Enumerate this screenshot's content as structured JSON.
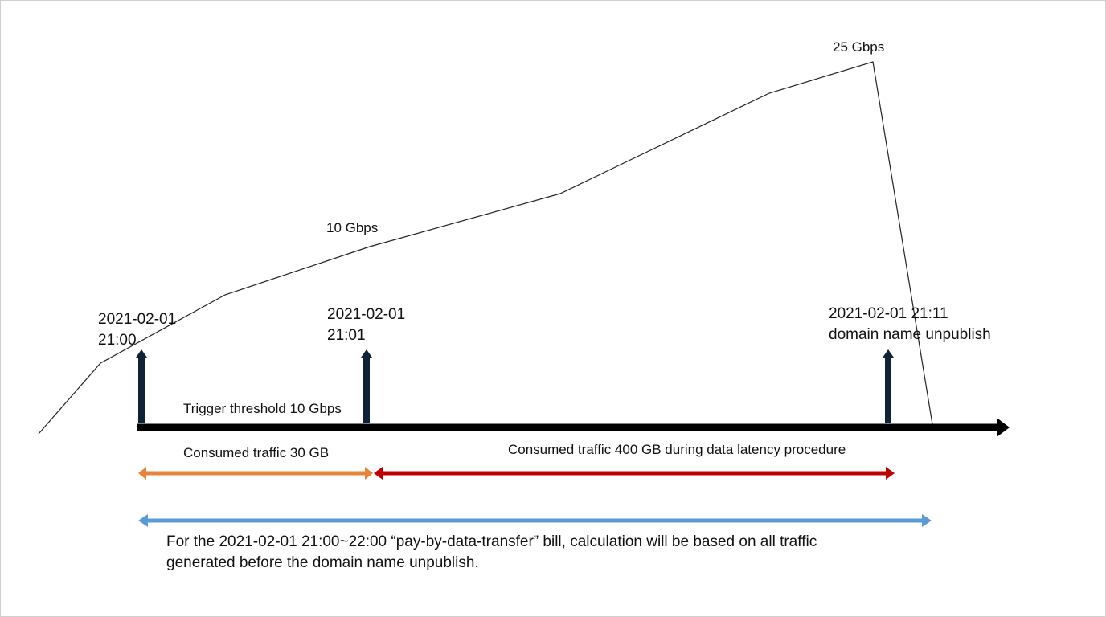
{
  "peak_labels": {
    "mid": "10 Gbps",
    "peak": "25 Gbps"
  },
  "timepoints": {
    "start": {
      "date": "2021-02-01",
      "time": "21:00"
    },
    "mid": {
      "date": "2021-02-01",
      "time": "21:01"
    },
    "end": {
      "line1": "2021-02-01 21:11",
      "line2": "domain name unpublish"
    }
  },
  "timeline": {
    "threshold_label": "Trigger threshold 10 Gbps"
  },
  "spans": {
    "first": {
      "label": "Consumed traffic 30 GB",
      "color": "#E8843A"
    },
    "second": {
      "label": "Consumed traffic 400 GB during data latency procedure",
      "color": "#C00000"
    },
    "total": {
      "color": "#5B9BD5"
    }
  },
  "bill_note": {
    "line1": "For the 2021-02-01 21:00~22:00 “pay-by-data-transfer” bill, calculation will be based on all traffic",
    "line2": "generated before the domain name unpublish."
  },
  "colors": {
    "timeline": "#000000",
    "marker_arrow": "#0F2236",
    "traffic_curve": "#222222"
  }
}
